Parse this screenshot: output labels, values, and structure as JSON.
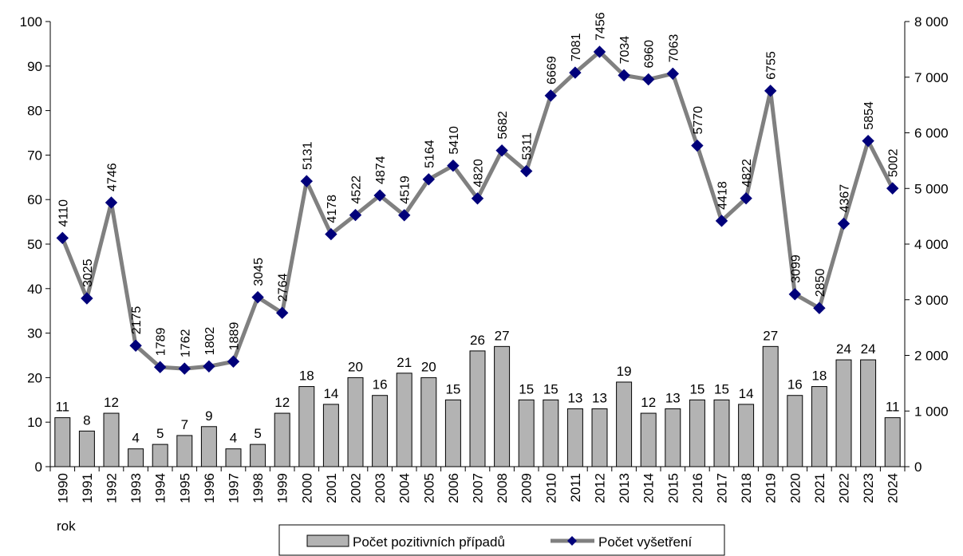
{
  "chart_data": {
    "type": "bar",
    "categories": [
      "1990",
      "1991",
      "1992",
      "1993",
      "1994",
      "1995",
      "1996",
      "1997",
      "1998",
      "1999",
      "2000",
      "2001",
      "2002",
      "2003",
      "2004",
      "2005",
      "2006",
      "2007",
      "2008",
      "2009",
      "2010",
      "2011",
      "2012",
      "2013",
      "2014",
      "2015",
      "2016",
      "2017",
      "2018",
      "2019",
      "2020",
      "2021",
      "2022",
      "2023",
      "2024"
    ],
    "series": [
      {
        "name": "Počet pozitivních případů",
        "type": "bar",
        "axis": "left",
        "color": "#b3b3b3",
        "values": [
          11,
          8,
          12,
          4,
          5,
          7,
          9,
          4,
          5,
          12,
          18,
          14,
          20,
          16,
          21,
          20,
          15,
          26,
          27,
          15,
          15,
          13,
          13,
          19,
          12,
          13,
          15,
          15,
          14,
          27,
          16,
          18,
          24,
          24,
          11
        ]
      },
      {
        "name": "Počet vyšetření",
        "type": "line",
        "axis": "right",
        "color": "#808080",
        "marker_color": "#00007a",
        "values": [
          4110,
          3025,
          4746,
          2175,
          1789,
          1762,
          1802,
          1889,
          3045,
          2764,
          5131,
          4178,
          4522,
          4874,
          4519,
          5164,
          5410,
          4820,
          5682,
          5311,
          6669,
          7081,
          7456,
          7034,
          6960,
          7063,
          5770,
          4418,
          4822,
          6755,
          3099,
          2850,
          4367,
          5854,
          5002
        ]
      }
    ],
    "xlabel": "rok",
    "left_axis": {
      "min": 0,
      "max": 100,
      "step": 10,
      "tick_labels": [
        "0",
        "10",
        "20",
        "30",
        "40",
        "50",
        "60",
        "70",
        "80",
        "90",
        "100"
      ]
    },
    "right_axis": {
      "min": 0,
      "max": 8000,
      "step": 1000,
      "tick_labels": [
        "0",
        "1 000",
        "2 000",
        "3 000",
        "4 000",
        "5 000",
        "6 000",
        "7 000",
        "8 000"
      ]
    },
    "grid": false,
    "legend_position": "bottom-center",
    "legend": [
      "Počet pozitivních případů",
      "Počet vyšetření"
    ]
  }
}
